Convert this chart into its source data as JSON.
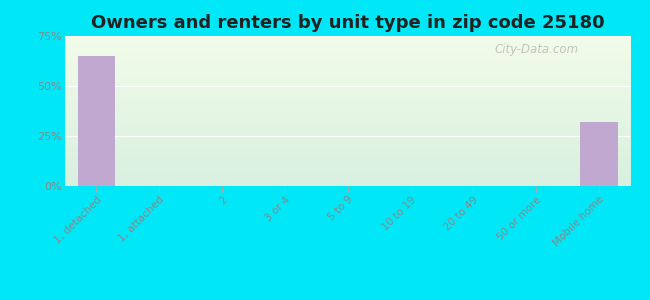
{
  "title": "Owners and renters by unit type in zip code 25180",
  "categories": [
    "1, detached",
    "1, attached",
    "2",
    "3 or 4",
    "5 to 9",
    "10 to 19",
    "20 to 49",
    "50 or more",
    "Mobile home"
  ],
  "values": [
    65,
    0,
    0,
    0,
    0,
    0,
    0,
    0,
    32
  ],
  "bar_color": "#c0a8d0",
  "background_outer": "#00e8f8",
  "background_inner_top": "#f2fce8",
  "background_inner_bottom": "#d8f0e0",
  "ylim": [
    0,
    75
  ],
  "yticks": [
    0,
    25,
    50,
    75
  ],
  "ytick_labels": [
    "0%",
    "25%",
    "50%",
    "75%"
  ],
  "title_fontsize": 13,
  "watermark": "City-Data.com",
  "grid_color": "#d0e8d0",
  "tick_label_color": "#888888"
}
